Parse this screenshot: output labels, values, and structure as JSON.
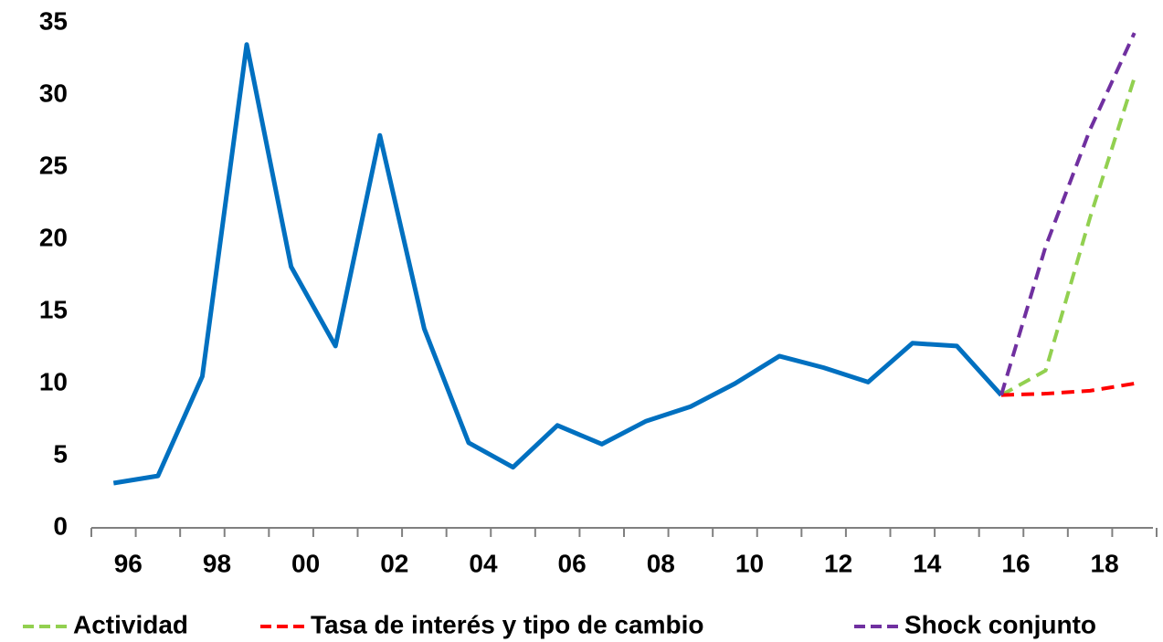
{
  "chart_data": {
    "type": "line",
    "categories": [
      "96",
      null,
      "98",
      null,
      "00",
      null,
      "02",
      null,
      "04",
      null,
      "06",
      null,
      "08",
      null,
      "10",
      null,
      "12",
      null,
      "14",
      null,
      "16",
      null,
      "18",
      null
    ],
    "series": [
      {
        "name": null,
        "color": "#0070c0",
        "dash": false,
        "values": [
          3.1,
          3.6,
          10.5,
          33.5,
          18.1,
          12.6,
          27.2,
          13.8,
          5.9,
          4.2,
          7.1,
          5.8,
          7.4,
          8.4,
          10.0,
          11.9,
          11.1,
          10.1,
          12.8,
          12.6,
          9.2,
          null,
          null,
          null
        ]
      },
      {
        "name": "Actividad",
        "color": "#92d050",
        "dash": true,
        "values": [
          null,
          null,
          null,
          null,
          null,
          null,
          null,
          null,
          null,
          null,
          null,
          null,
          null,
          null,
          null,
          null,
          null,
          null,
          null,
          null,
          9.2,
          10.9,
          21.5,
          31.2
        ]
      },
      {
        "name": "Tasa de interés y tipo de cambio",
        "color": "#ff0000",
        "dash": true,
        "values": [
          null,
          null,
          null,
          null,
          null,
          null,
          null,
          null,
          null,
          null,
          null,
          null,
          null,
          null,
          null,
          null,
          null,
          null,
          null,
          null,
          9.2,
          9.3,
          9.5,
          10.0
        ]
      },
      {
        "name": "Shock conjunto",
        "color": "#7030a0",
        "dash": true,
        "values": [
          null,
          null,
          null,
          null,
          null,
          null,
          null,
          null,
          null,
          null,
          null,
          null,
          null,
          null,
          null,
          null,
          null,
          null,
          null,
          null,
          9.2,
          19.5,
          27.6,
          34.3
        ]
      }
    ],
    "ylim": [
      0,
      35
    ],
    "yticks": [
      0,
      5,
      10,
      15,
      20,
      25,
      30,
      35
    ],
    "grid": false
  }
}
